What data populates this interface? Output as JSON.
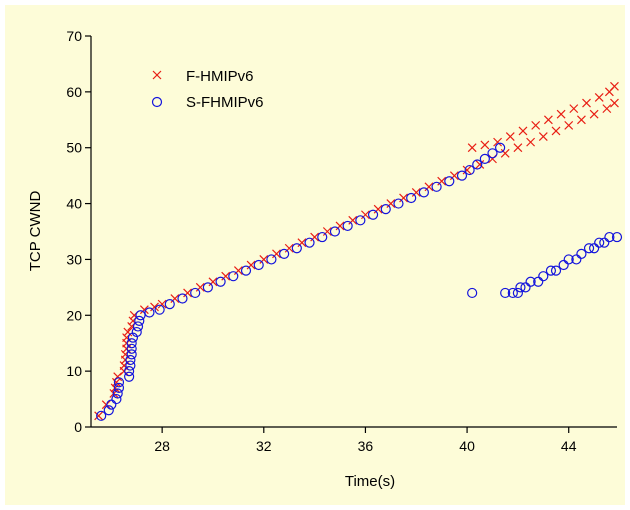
{
  "chart_data": {
    "type": "scatter",
    "title": "",
    "xlabel": "Time(s)",
    "ylabel": "TCP CWND",
    "xlim": [
      25.2,
      45.9
    ],
    "ylim": [
      0,
      70
    ],
    "x_ticks": [
      28,
      32,
      36,
      40,
      44
    ],
    "y_ticks": [
      0,
      10,
      20,
      30,
      40,
      50,
      60,
      70
    ],
    "grid": false,
    "legend_position": "top-left",
    "background_color": "#fdfcd8",
    "series": [
      {
        "name": "F-HMIPv6",
        "marker": "x",
        "color": "#e81e14",
        "points": [
          [
            25.5,
            2
          ],
          [
            25.8,
            4
          ],
          [
            26.1,
            6
          ],
          [
            26.15,
            7
          ],
          [
            26.2,
            8
          ],
          [
            26.25,
            9
          ],
          [
            26.5,
            10
          ],
          [
            26.5,
            11
          ],
          [
            26.55,
            12
          ],
          [
            26.55,
            13
          ],
          [
            26.6,
            14
          ],
          [
            26.6,
            15
          ],
          [
            26.6,
            16
          ],
          [
            26.65,
            17
          ],
          [
            26.8,
            18
          ],
          [
            26.85,
            19
          ],
          [
            26.9,
            20
          ],
          [
            27.3,
            21
          ],
          [
            27.7,
            21.5
          ],
          [
            28,
            22
          ],
          [
            28.5,
            23
          ],
          [
            29,
            24
          ],
          [
            29.5,
            25
          ],
          [
            30,
            26
          ],
          [
            30.5,
            27
          ],
          [
            31,
            28
          ],
          [
            31.5,
            29
          ],
          [
            32,
            30
          ],
          [
            32.5,
            31
          ],
          [
            33,
            32
          ],
          [
            33.5,
            33
          ],
          [
            34,
            34
          ],
          [
            34.5,
            35
          ],
          [
            35,
            36
          ],
          [
            35.5,
            37
          ],
          [
            36,
            38
          ],
          [
            36.5,
            39
          ],
          [
            37,
            40
          ],
          [
            37.5,
            41
          ],
          [
            38,
            42
          ],
          [
            38.5,
            43
          ],
          [
            39,
            44
          ],
          [
            39.5,
            45
          ],
          [
            40,
            46
          ],
          [
            40.5,
            47
          ],
          [
            41,
            48
          ],
          [
            41.5,
            49
          ],
          [
            42,
            50
          ],
          [
            42.5,
            51
          ],
          [
            43,
            52
          ],
          [
            43.5,
            53
          ],
          [
            44,
            54
          ],
          [
            44.5,
            55
          ],
          [
            45,
            56
          ],
          [
            45.5,
            57
          ],
          [
            45.8,
            58
          ],
          [
            40.2,
            50
          ],
          [
            40.7,
            50.5
          ],
          [
            41.2,
            51
          ],
          [
            41.7,
            52
          ],
          [
            42.2,
            53
          ],
          [
            42.7,
            54
          ],
          [
            43.2,
            55
          ],
          [
            43.7,
            56
          ],
          [
            44.2,
            57
          ],
          [
            44.7,
            58
          ],
          [
            45.2,
            59
          ],
          [
            45.6,
            60
          ],
          [
            45.8,
            61
          ]
        ]
      },
      {
        "name": "S-FHMIPv6",
        "marker": "o",
        "color": "#1414dc",
        "points": [
          [
            25.6,
            2
          ],
          [
            25.9,
            3
          ],
          [
            26.0,
            4
          ],
          [
            26.2,
            5
          ],
          [
            26.25,
            6
          ],
          [
            26.3,
            7
          ],
          [
            26.3,
            8
          ],
          [
            26.7,
            9
          ],
          [
            26.7,
            10
          ],
          [
            26.75,
            11
          ],
          [
            26.75,
            12
          ],
          [
            26.8,
            13
          ],
          [
            26.8,
            14
          ],
          [
            26.8,
            15
          ],
          [
            26.85,
            16
          ],
          [
            27.0,
            17
          ],
          [
            27.05,
            18
          ],
          [
            27.1,
            19
          ],
          [
            27.15,
            20
          ],
          [
            27.5,
            20.5
          ],
          [
            27.9,
            21
          ],
          [
            28.3,
            22
          ],
          [
            28.8,
            23
          ],
          [
            29.3,
            24
          ],
          [
            29.8,
            25
          ],
          [
            30.3,
            26
          ],
          [
            30.8,
            27
          ],
          [
            31.3,
            28
          ],
          [
            31.8,
            29
          ],
          [
            32.3,
            30
          ],
          [
            32.8,
            31
          ],
          [
            33.3,
            32
          ],
          [
            33.8,
            33
          ],
          [
            34.3,
            34
          ],
          [
            34.8,
            35
          ],
          [
            35.3,
            36
          ],
          [
            35.8,
            37
          ],
          [
            36.3,
            38
          ],
          [
            36.8,
            39
          ],
          [
            37.3,
            40
          ],
          [
            37.8,
            41
          ],
          [
            38.3,
            42
          ],
          [
            38.8,
            43
          ],
          [
            39.3,
            44
          ],
          [
            39.8,
            45
          ],
          [
            40.1,
            46
          ],
          [
            40.4,
            47
          ],
          [
            40.7,
            48
          ],
          [
            41.0,
            49
          ],
          [
            41.3,
            50
          ],
          [
            40.2,
            24
          ],
          [
            41.5,
            24
          ],
          [
            41.8,
            24
          ],
          [
            42.0,
            24
          ],
          [
            42.1,
            25
          ],
          [
            42.3,
            25
          ],
          [
            42.5,
            26
          ],
          [
            42.8,
            26
          ],
          [
            43.0,
            27
          ],
          [
            43.3,
            28
          ],
          [
            43.5,
            28
          ],
          [
            43.8,
            29
          ],
          [
            44.0,
            30
          ],
          [
            44.3,
            30
          ],
          [
            44.5,
            31
          ],
          [
            44.8,
            32
          ],
          [
            45.0,
            32
          ],
          [
            45.2,
            33
          ],
          [
            45.4,
            33
          ],
          [
            45.6,
            34
          ],
          [
            45.9,
            34
          ]
        ]
      }
    ]
  }
}
